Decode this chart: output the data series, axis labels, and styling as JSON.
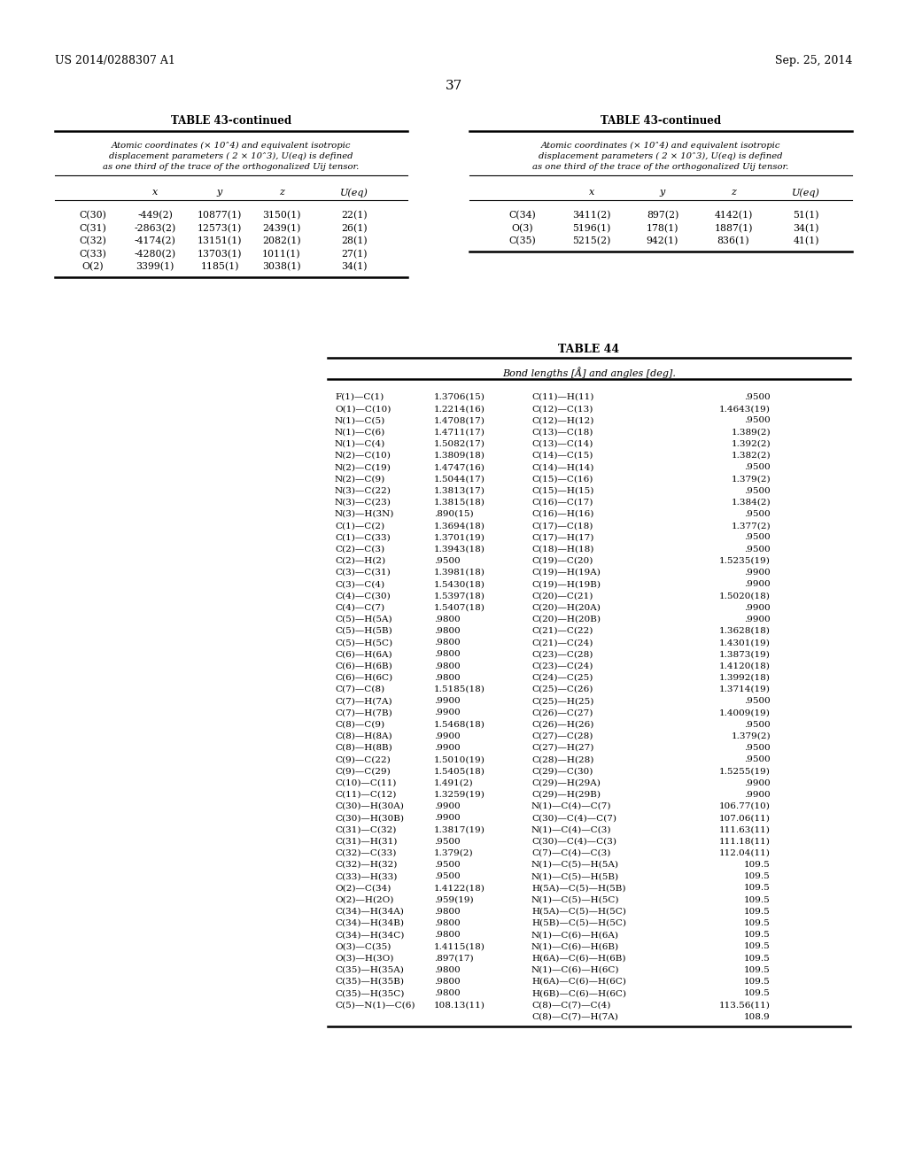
{
  "header_left": "US 2014/0288307 A1",
  "header_right": "Sep. 25, 2014",
  "page_number": "37",
  "table43_title": "TABLE 43-continued",
  "table43_subtitle_lines": [
    "Atomic coordinates (× 10˄4) and equivalent isotropic",
    "displacement parameters ( 2 × 10˄3), U(eq) is defined",
    "as one third of the trace of the orthogonalized Uij tensor."
  ],
  "table43_cols": [
    "x",
    "y",
    "z",
    "U(eq)"
  ],
  "table43_left_rows": [
    [
      "C(30)",
      "-449(2)",
      "10877(1)",
      "3150(1)",
      "22(1)"
    ],
    [
      "C(31)",
      "-2863(2)",
      "12573(1)",
      "2439(1)",
      "26(1)"
    ],
    [
      "C(32)",
      "-4174(2)",
      "13151(1)",
      "2082(1)",
      "28(1)"
    ],
    [
      "C(33)",
      "-4280(2)",
      "13703(1)",
      "1011(1)",
      "27(1)"
    ],
    [
      "O(2)",
      "3399(1)",
      "1185(1)",
      "3038(1)",
      "34(1)"
    ]
  ],
  "table43_right_rows": [
    [
      "C(34)",
      "3411(2)",
      "897(2)",
      "4142(1)",
      "51(1)"
    ],
    [
      "O(3)",
      "5196(1)",
      "178(1)",
      "1887(1)",
      "34(1)"
    ],
    [
      "C(35)",
      "5215(2)",
      "942(1)",
      "836(1)",
      "41(1)"
    ]
  ],
  "table44_title": "TABLE 44",
  "table44_subtitle": "Bond lengths [Å] and angles [deg].",
  "table44_left_col": [
    [
      "F(1)—C(1)",
      "1.3706(15)"
    ],
    [
      "O(1)—C(10)",
      "1.2214(16)"
    ],
    [
      "N(1)—C(5)",
      "1.4708(17)"
    ],
    [
      "N(1)—C(6)",
      "1.4711(17)"
    ],
    [
      "N(1)—C(4)",
      "1.5082(17)"
    ],
    [
      "N(2)—C(10)",
      "1.3809(18)"
    ],
    [
      "N(2)—C(19)",
      "1.4747(16)"
    ],
    [
      "N(2)—C(9)",
      "1.5044(17)"
    ],
    [
      "N(3)—C(22)",
      "1.3813(17)"
    ],
    [
      "N(3)—C(23)",
      "1.3815(18)"
    ],
    [
      "N(3)—H(3N)",
      ".890(15)"
    ],
    [
      "C(1)—C(2)",
      "1.3694(18)"
    ],
    [
      "C(1)—C(33)",
      "1.3701(19)"
    ],
    [
      "C(2)—C(3)",
      "1.3943(18)"
    ],
    [
      "C(2)—H(2)",
      ".9500"
    ],
    [
      "C(3)—C(31)",
      "1.3981(18)"
    ],
    [
      "C(3)—C(4)",
      "1.5430(18)"
    ],
    [
      "C(4)—C(30)",
      "1.5397(18)"
    ],
    [
      "C(4)—C(7)",
      "1.5407(18)"
    ],
    [
      "C(5)—H(5A)",
      ".9800"
    ],
    [
      "C(5)—H(5B)",
      ".9800"
    ],
    [
      "C(5)—H(5C)",
      ".9800"
    ],
    [
      "C(6)—H(6A)",
      ".9800"
    ],
    [
      "C(6)—H(6B)",
      ".9800"
    ],
    [
      "C(6)—H(6C)",
      ".9800"
    ],
    [
      "C(7)—C(8)",
      "1.5185(18)"
    ],
    [
      "C(7)—H(7A)",
      ".9900"
    ],
    [
      "C(7)—H(7B)",
      ".9900"
    ],
    [
      "C(8)—C(9)",
      "1.5468(18)"
    ],
    [
      "C(8)—H(8A)",
      ".9900"
    ],
    [
      "C(8)—H(8B)",
      ".9900"
    ],
    [
      "C(9)—C(22)",
      "1.5010(19)"
    ],
    [
      "C(9)—C(29)",
      "1.5405(18)"
    ],
    [
      "C(10)—C(11)",
      "1.491(2)"
    ],
    [
      "C(11)—C(12)",
      "1.3259(19)"
    ],
    [
      "C(30)—H(30A)",
      ".9900"
    ],
    [
      "C(30)—H(30B)",
      ".9900"
    ],
    [
      "C(31)—C(32)",
      "1.3817(19)"
    ],
    [
      "C(31)—H(31)",
      ".9500"
    ],
    [
      "C(32)—C(33)",
      "1.379(2)"
    ],
    [
      "C(32)—H(32)",
      ".9500"
    ],
    [
      "C(33)—H(33)",
      ".9500"
    ],
    [
      "O(2)—C(34)",
      "1.4122(18)"
    ],
    [
      "O(2)—H(2O)",
      ".959(19)"
    ],
    [
      "C(34)—H(34A)",
      ".9800"
    ],
    [
      "C(34)—H(34B)",
      ".9800"
    ],
    [
      "C(34)—H(34C)",
      ".9800"
    ],
    [
      "O(3)—C(35)",
      "1.4115(18)"
    ],
    [
      "O(3)—H(3O)",
      ".897(17)"
    ],
    [
      "C(35)—H(35A)",
      ".9800"
    ],
    [
      "C(35)—H(35B)",
      ".9800"
    ],
    [
      "C(35)—H(35C)",
      ".9800"
    ],
    [
      "C(5)—N(1)—C(6)",
      "108.13(11)"
    ]
  ],
  "table44_right_col": [
    [
      "C(11)—H(11)",
      ".9500"
    ],
    [
      "C(12)—C(13)",
      "1.4643(19)"
    ],
    [
      "C(12)—H(12)",
      ".9500"
    ],
    [
      "C(13)—C(18)",
      "1.389(2)"
    ],
    [
      "C(13)—C(14)",
      "1.392(2)"
    ],
    [
      "C(14)—C(15)",
      "1.382(2)"
    ],
    [
      "C(14)—H(14)",
      ".9500"
    ],
    [
      "C(15)—C(16)",
      "1.379(2)"
    ],
    [
      "C(15)—H(15)",
      ".9500"
    ],
    [
      "C(16)—C(17)",
      "1.384(2)"
    ],
    [
      "C(16)—H(16)",
      ".9500"
    ],
    [
      "C(17)—C(18)",
      "1.377(2)"
    ],
    [
      "C(17)—H(17)",
      ".9500"
    ],
    [
      "C(18)—H(18)",
      ".9500"
    ],
    [
      "C(19)—C(20)",
      "1.5235(19)"
    ],
    [
      "C(19)—H(19A)",
      ".9900"
    ],
    [
      "C(19)—H(19B)",
      ".9900"
    ],
    [
      "C(20)—C(21)",
      "1.5020(18)"
    ],
    [
      "C(20)—H(20A)",
      ".9900"
    ],
    [
      "C(20)—H(20B)",
      ".9900"
    ],
    [
      "C(21)—C(22)",
      "1.3628(18)"
    ],
    [
      "C(21)—C(24)",
      "1.4301(19)"
    ],
    [
      "C(23)—C(28)",
      "1.3873(19)"
    ],
    [
      "C(23)—C(24)",
      "1.4120(18)"
    ],
    [
      "C(24)—C(25)",
      "1.3992(18)"
    ],
    [
      "C(25)—C(26)",
      "1.3714(19)"
    ],
    [
      "C(25)—H(25)",
      ".9500"
    ],
    [
      "C(26)—C(27)",
      "1.4009(19)"
    ],
    [
      "C(26)—H(26)",
      ".9500"
    ],
    [
      "C(27)—C(28)",
      "1.379(2)"
    ],
    [
      "C(27)—H(27)",
      ".9500"
    ],
    [
      "C(28)—H(28)",
      ".9500"
    ],
    [
      "C(29)—C(30)",
      "1.5255(19)"
    ],
    [
      "C(29)—H(29A)",
      ".9900"
    ],
    [
      "C(29)—H(29B)",
      ".9900"
    ],
    [
      "N(1)—C(4)—C(7)",
      "106.77(10)"
    ],
    [
      "C(30)—C(4)—C(7)",
      "107.06(11)"
    ],
    [
      "N(1)—C(4)—C(3)",
      "111.63(11)"
    ],
    [
      "C(30)—C(4)—C(3)",
      "111.18(11)"
    ],
    [
      "C(7)—C(4)—C(3)",
      "112.04(11)"
    ],
    [
      "N(1)—C(5)—H(5A)",
      "109.5"
    ],
    [
      "N(1)—C(5)—H(5B)",
      "109.5"
    ],
    [
      "H(5A)—C(5)—H(5B)",
      "109.5"
    ],
    [
      "N(1)—C(5)—H(5C)",
      "109.5"
    ],
    [
      "H(5A)—C(5)—H(5C)",
      "109.5"
    ],
    [
      "H(5B)—C(5)—H(5C)",
      "109.5"
    ],
    [
      "N(1)—C(6)—H(6A)",
      "109.5"
    ],
    [
      "N(1)—C(6)—H(6B)",
      "109.5"
    ],
    [
      "H(6A)—C(6)—H(6B)",
      "109.5"
    ],
    [
      "N(1)—C(6)—H(6C)",
      "109.5"
    ],
    [
      "H(6A)—C(6)—H(6C)",
      "109.5"
    ],
    [
      "H(6B)—C(6)—H(6C)",
      "109.5"
    ],
    [
      "C(8)—C(7)—C(4)",
      "113.56(11)"
    ],
    [
      "C(8)—C(7)—H(7A)",
      "108.9"
    ]
  ]
}
